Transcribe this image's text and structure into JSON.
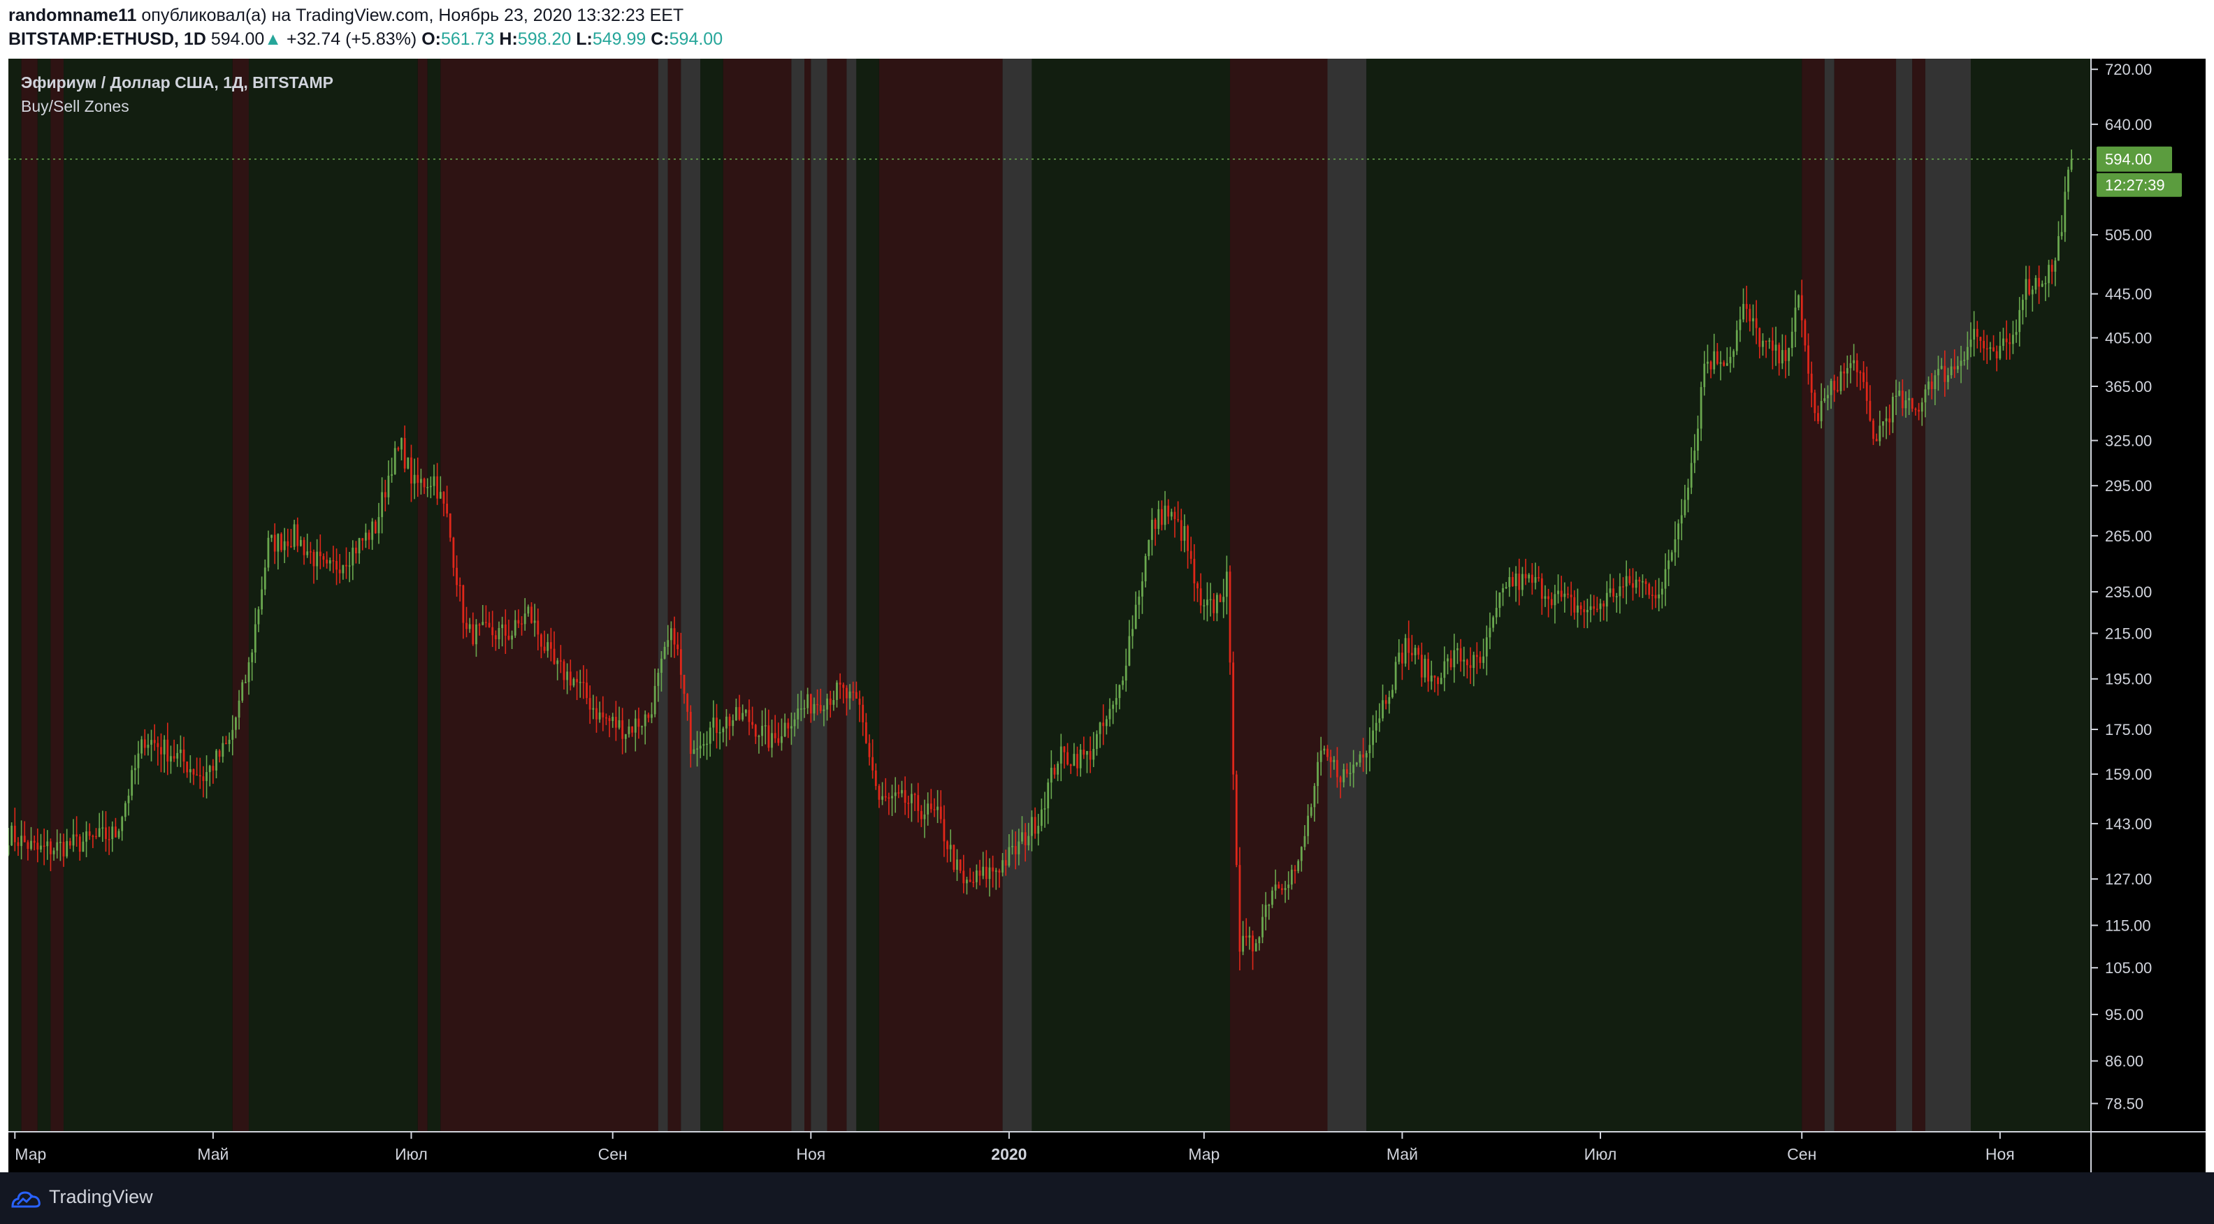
{
  "header": {
    "author": "randomname11",
    "published_text": "опубликовал(а) на TradingView.com, Ноябрь 23, 2020 13:32:23 EET",
    "symbol": "BITSTAMP:ETHUSD, 1D",
    "last": "594.00",
    "change_arrow": "▲",
    "change": "+32.74 (+5.83%)",
    "o_label": "O:",
    "o_value": "561.73",
    "h_label": "H:",
    "h_value": "598.20",
    "l_label": "L:",
    "l_value": "549.99",
    "c_label": "C:",
    "c_value": "594.00"
  },
  "legend": {
    "title": "Эфириум / Доллар США, 1Д, BITSTAMP",
    "indicator": "Buy/Sell Zones"
  },
  "price_badge": {
    "price": "594.00",
    "countdown": "12:27:39"
  },
  "footer": {
    "brand": "TradingView"
  },
  "colors": {
    "up": "#6aa84f",
    "down": "#e0271a",
    "buy_zone": "#121e10",
    "sell_zone": "#2e1313",
    "neutral_zone": "#333333",
    "badge": "#5b9c3e"
  },
  "chart_data": {
    "type": "candlestick",
    "y_scale": "log",
    "ylim": [
      75,
      730
    ],
    "y_ticks": [
      720,
      640,
      594,
      505,
      445,
      405,
      365,
      325,
      295,
      265,
      235,
      215,
      195,
      175,
      159,
      143,
      127,
      115,
      105,
      95,
      86,
      78.5
    ],
    "y_tick_labels": [
      "720.00",
      "640.00",
      "594.00",
      "505.00",
      "445.00",
      "405.00",
      "365.00",
      "325.00",
      "295.00",
      "265.00",
      "235.00",
      "215.00",
      "195.00",
      "175.00",
      "159.00",
      "143.00",
      "127.00",
      "115.00",
      "105.00",
      "95.00",
      "86.00",
      "78.50"
    ],
    "x_tick_labels": [
      "Мар",
      "Май",
      "Июл",
      "Сен",
      "Ноя",
      "2020",
      "Мар",
      "Май",
      "Июл",
      "Сен",
      "Ноя"
    ],
    "x_tick_dates": [
      "2019-03-01",
      "2019-05-01",
      "2019-07-01",
      "2019-09-01",
      "2019-11-01",
      "2020-01-01",
      "2020-03-01",
      "2020-05-01",
      "2020-07-01",
      "2020-09-01",
      "2020-11-01"
    ],
    "x_range": [
      "2019-02-27",
      "2020-11-29"
    ],
    "price_path": [
      [
        "2019-02-27",
        140
      ],
      [
        "2019-03-08",
        135
      ],
      [
        "2019-03-20",
        137
      ],
      [
        "2019-04-01",
        140
      ],
      [
        "2019-04-10",
        172
      ],
      [
        "2019-04-20",
        165
      ],
      [
        "2019-04-28",
        158
      ],
      [
        "2019-05-06",
        170
      ],
      [
        "2019-05-12",
        200
      ],
      [
        "2019-05-18",
        260
      ],
      [
        "2019-05-26",
        265
      ],
      [
        "2019-06-05",
        245
      ],
      [
        "2019-06-12",
        255
      ],
      [
        "2019-06-20",
        270
      ],
      [
        "2019-06-25",
        310
      ],
      [
        "2019-06-28",
        320
      ],
      [
        "2019-07-02",
        295
      ],
      [
        "2019-07-08",
        300
      ],
      [
        "2019-07-12",
        275
      ],
      [
        "2019-07-18",
        215
      ],
      [
        "2019-07-25",
        215
      ],
      [
        "2019-08-01",
        215
      ],
      [
        "2019-08-06",
        225
      ],
      [
        "2019-08-14",
        200
      ],
      [
        "2019-08-20",
        195
      ],
      [
        "2019-08-28",
        180
      ],
      [
        "2019-09-05",
        175
      ],
      [
        "2019-09-12",
        180
      ],
      [
        "2019-09-18",
        210
      ],
      [
        "2019-09-20",
        215
      ],
      [
        "2019-09-25",
        170
      ],
      [
        "2019-10-05",
        178
      ],
      [
        "2019-10-12",
        180
      ],
      [
        "2019-10-20",
        170
      ],
      [
        "2019-10-26",
        180
      ],
      [
        "2019-11-01",
        185
      ],
      [
        "2019-11-10",
        190
      ],
      [
        "2019-11-16",
        183
      ],
      [
        "2019-11-22",
        150
      ],
      [
        "2019-11-30",
        150
      ],
      [
        "2019-12-10",
        145
      ],
      [
        "2019-12-18",
        125
      ],
      [
        "2019-12-28",
        130
      ],
      [
        "2020-01-03",
        135
      ],
      [
        "2020-01-10",
        145
      ],
      [
        "2020-01-16",
        165
      ],
      [
        "2020-01-25",
        165
      ],
      [
        "2020-02-03",
        185
      ],
      [
        "2020-02-08",
        220
      ],
      [
        "2020-02-14",
        270
      ],
      [
        "2020-02-18",
        280
      ],
      [
        "2020-02-24",
        265
      ],
      [
        "2020-02-29",
        225
      ],
      [
        "2020-03-04",
        228
      ],
      [
        "2020-03-08",
        240
      ],
      [
        "2020-03-12",
        110
      ],
      [
        "2020-03-16",
        110
      ],
      [
        "2020-03-22",
        125
      ],
      [
        "2020-03-30",
        130
      ],
      [
        "2020-04-06",
        165
      ],
      [
        "2020-04-14",
        158
      ],
      [
        "2020-04-20",
        170
      ],
      [
        "2020-04-25",
        185
      ],
      [
        "2020-05-02",
        210
      ],
      [
        "2020-05-10",
        195
      ],
      [
        "2020-05-18",
        205
      ],
      [
        "2020-05-25",
        200
      ],
      [
        "2020-06-02",
        240
      ],
      [
        "2020-06-10",
        240
      ],
      [
        "2020-06-20",
        230
      ],
      [
        "2020-06-28",
        225
      ],
      [
        "2020-07-05",
        235
      ],
      [
        "2020-07-12",
        240
      ],
      [
        "2020-07-20",
        235
      ],
      [
        "2020-07-24",
        265
      ],
      [
        "2020-07-30",
        320
      ],
      [
        "2020-08-02",
        385
      ],
      [
        "2020-08-10",
        390
      ],
      [
        "2020-08-14",
        430
      ],
      [
        "2020-08-20",
        400
      ],
      [
        "2020-08-26",
        385
      ],
      [
        "2020-08-31",
        435
      ],
      [
        "2020-09-03",
        380
      ],
      [
        "2020-09-05",
        340
      ],
      [
        "2020-09-12",
        370
      ],
      [
        "2020-09-18",
        385
      ],
      [
        "2020-09-23",
        325
      ],
      [
        "2020-09-30",
        355
      ],
      [
        "2020-10-06",
        345
      ],
      [
        "2020-10-10",
        370
      ],
      [
        "2020-10-18",
        380
      ],
      [
        "2020-10-24",
        410
      ],
      [
        "2020-10-30",
        385
      ],
      [
        "2020-11-05",
        405
      ],
      [
        "2020-11-08",
        450
      ],
      [
        "2020-11-14",
        460
      ],
      [
        "2020-11-18",
        475
      ],
      [
        "2020-11-21",
        545
      ],
      [
        "2020-11-23",
        594
      ]
    ],
    "zones": [
      [
        "2019-02-27",
        "2019-03-03",
        "buy"
      ],
      [
        "2019-03-03",
        "2019-03-08",
        "sell"
      ],
      [
        "2019-03-08",
        "2019-03-12",
        "buy"
      ],
      [
        "2019-03-12",
        "2019-03-16",
        "sell"
      ],
      [
        "2019-03-16",
        "2019-05-07",
        "buy"
      ],
      [
        "2019-05-07",
        "2019-05-12",
        "sell"
      ],
      [
        "2019-05-12",
        "2019-07-03",
        "buy"
      ],
      [
        "2019-07-03",
        "2019-07-06",
        "sell"
      ],
      [
        "2019-07-06",
        "2019-07-10",
        "buy"
      ],
      [
        "2019-07-10",
        "2019-09-15",
        "sell"
      ],
      [
        "2019-09-15",
        "2019-09-18",
        "neutral"
      ],
      [
        "2019-09-18",
        "2019-09-22",
        "sell"
      ],
      [
        "2019-09-22",
        "2019-09-28",
        "neutral"
      ],
      [
        "2019-09-28",
        "2019-10-05",
        "buy"
      ],
      [
        "2019-10-05",
        "2019-10-26",
        "sell"
      ],
      [
        "2019-10-26",
        "2019-10-30",
        "neutral"
      ],
      [
        "2019-10-30",
        "2019-11-01",
        "sell"
      ],
      [
        "2019-11-01",
        "2019-11-06",
        "neutral"
      ],
      [
        "2019-11-06",
        "2019-11-12",
        "sell"
      ],
      [
        "2019-11-12",
        "2019-11-15",
        "neutral"
      ],
      [
        "2019-11-15",
        "2019-11-22",
        "buy"
      ],
      [
        "2019-11-22",
        "2019-12-30",
        "sell"
      ],
      [
        "2019-12-30",
        "2020-01-08",
        "neutral"
      ],
      [
        "2020-01-08",
        "2020-03-09",
        "buy"
      ],
      [
        "2020-03-09",
        "2020-04-08",
        "sell"
      ],
      [
        "2020-04-08",
        "2020-04-20",
        "neutral"
      ],
      [
        "2020-04-20",
        "2020-09-01",
        "buy"
      ],
      [
        "2020-09-01",
        "2020-09-08",
        "sell"
      ],
      [
        "2020-09-08",
        "2020-09-11",
        "neutral"
      ],
      [
        "2020-09-11",
        "2020-09-30",
        "sell"
      ],
      [
        "2020-09-30",
        "2020-10-05",
        "neutral"
      ],
      [
        "2020-10-05",
        "2020-10-09",
        "sell"
      ],
      [
        "2020-10-09",
        "2020-10-23",
        "neutral"
      ],
      [
        "2020-10-23",
        "2020-11-29",
        "buy"
      ]
    ],
    "grid": false,
    "legend": "top-left"
  }
}
